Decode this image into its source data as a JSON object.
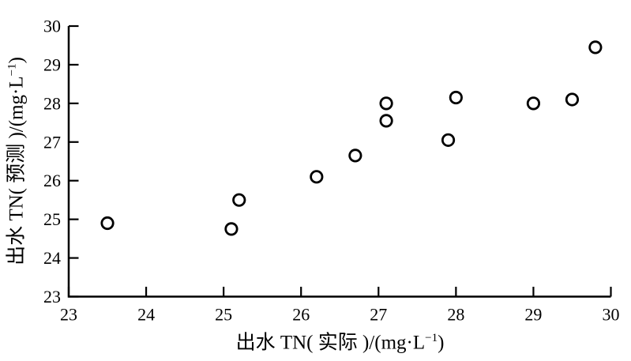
{
  "figure": {
    "background_color": "#ffffff",
    "ink_color": "#000000"
  },
  "chart_data": {
    "type": "scatter",
    "xlabel": "出水 TN( 实际 )/(mg·L⁻¹)",
    "ylabel": "出水 TN( 预测 )/(mg·L⁻¹)",
    "xlabel_parts": {
      "pre": "出水 TN( 实际 )/(mg·L",
      "sup": "−1",
      "post": ")"
    },
    "ylabel_parts": {
      "pre": "出水 TN( 预测 )/(mg·L",
      "sup": "−1",
      "post": ")"
    },
    "xlim": [
      23,
      30
    ],
    "ylim": [
      23,
      30
    ],
    "x_ticks": [
      23,
      24,
      25,
      26,
      27,
      28,
      29,
      30
    ],
    "y_ticks": [
      23,
      24,
      25,
      26,
      27,
      28,
      29,
      30
    ],
    "grid": false,
    "legend": null,
    "tick_style": "inward",
    "marker": {
      "shape": "open-circle",
      "radius_px": 7.2,
      "stroke_px": 2.8,
      "color": "#000000",
      "fill": "#ffffff"
    },
    "points": [
      {
        "x": 23.5,
        "y": 24.9
      },
      {
        "x": 25.1,
        "y": 24.75
      },
      {
        "x": 25.2,
        "y": 25.5
      },
      {
        "x": 26.2,
        "y": 26.1
      },
      {
        "x": 26.7,
        "y": 26.65
      },
      {
        "x": 27.1,
        "y": 27.55
      },
      {
        "x": 27.1,
        "y": 28.0
      },
      {
        "x": 27.9,
        "y": 27.05
      },
      {
        "x": 28.0,
        "y": 28.15
      },
      {
        "x": 29.0,
        "y": 28.0
      },
      {
        "x": 29.5,
        "y": 28.1
      },
      {
        "x": 29.8,
        "y": 29.45
      }
    ]
  }
}
